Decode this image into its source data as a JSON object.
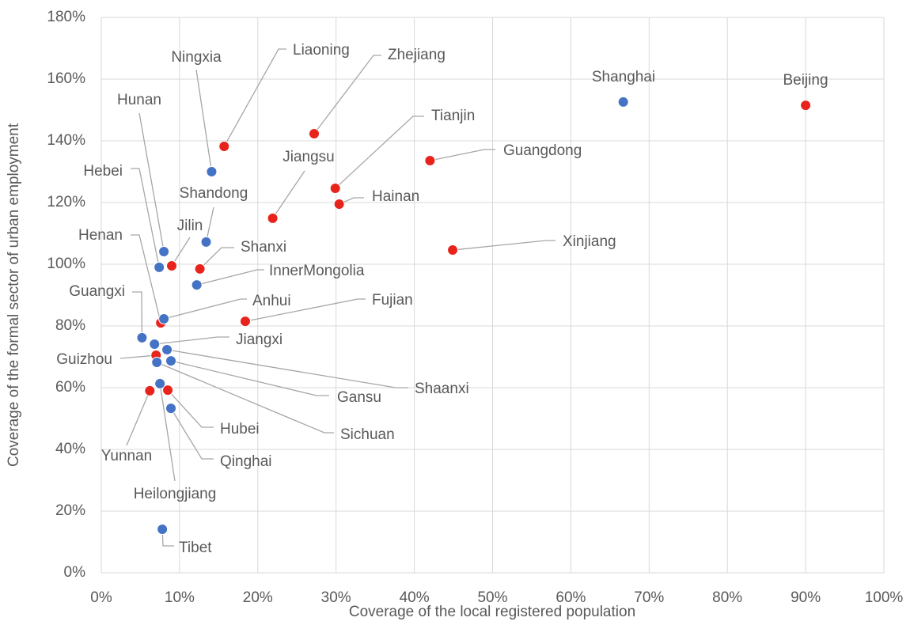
{
  "chart_data": {
    "type": "scatter",
    "x_label": "Coverage of the local registered population",
    "y_label": "Coverage of the formal sector of urban employment",
    "xlim": [
      0,
      100
    ],
    "xticks": [
      {
        "value": 0,
        "label": "0%"
      },
      {
        "value": 10,
        "label": "10%"
      },
      {
        "value": 20,
        "label": "20%"
      },
      {
        "value": 30,
        "label": "30%"
      },
      {
        "value": 40,
        "label": "40%"
      },
      {
        "value": 50,
        "label": "50%"
      },
      {
        "value": 60,
        "label": "60%"
      },
      {
        "value": 70,
        "label": "70%"
      },
      {
        "value": 80,
        "label": "80%"
      },
      {
        "value": 90,
        "label": "90%"
      },
      {
        "value": 100,
        "label": "100%"
      }
    ],
    "ylim": [
      0,
      180
    ],
    "yticks": [
      {
        "value": 0,
        "label": "0%"
      },
      {
        "value": 20,
        "label": "20%"
      },
      {
        "value": 40,
        "label": "40%"
      },
      {
        "value": 60,
        "label": "60%"
      },
      {
        "value": 80,
        "label": "80%"
      },
      {
        "value": 100,
        "label": "100%"
      },
      {
        "value": 120,
        "label": "120%"
      },
      {
        "value": 140,
        "label": "140%"
      },
      {
        "value": 160,
        "label": "160%"
      },
      {
        "value": 180,
        "label": "180%"
      }
    ],
    "grid": true,
    "points": [
      {
        "label": "Shanghai",
        "x": 66.7,
        "y": 152.6,
        "color": "#4472c4"
      },
      {
        "label": "Beijing",
        "x": 90.0,
        "y": 151.5,
        "color": "#e8231b"
      },
      {
        "label": "Liaoning",
        "x": 15.7,
        "y": 138.2,
        "color": "#e8231b"
      },
      {
        "label": "Zhejiang",
        "x": 27.2,
        "y": 142.3,
        "color": "#e8231b"
      },
      {
        "label": "Ningxia",
        "x": 14.1,
        "y": 130.0,
        "color": "#4472c4"
      },
      {
        "label": "Hunan",
        "x": 8.0,
        "y": 104.1,
        "color": "#4472c4"
      },
      {
        "label": "Hebei",
        "x": 7.4,
        "y": 99.0,
        "color": "#4472c4"
      },
      {
        "label": "Jiangsu",
        "x": 21.9,
        "y": 114.9,
        "color": "#e8231b"
      },
      {
        "label": "Tianjin",
        "x": 29.9,
        "y": 124.6,
        "color": "#e8231b"
      },
      {
        "label": "Guangdong",
        "x": 42.0,
        "y": 133.6,
        "color": "#e8231b"
      },
      {
        "label": "Hainan",
        "x": 30.4,
        "y": 119.5,
        "color": "#e8231b"
      },
      {
        "label": "Shandong",
        "x": 13.4,
        "y": 107.2,
        "color": "#4472c4"
      },
      {
        "label": "Jilin",
        "x": 9.0,
        "y": 99.5,
        "color": "#e8231b"
      },
      {
        "label": "Henan",
        "x": 7.6,
        "y": 81.0,
        "color": "#e8231b"
      },
      {
        "label": "Shanxi",
        "x": 12.6,
        "y": 98.5,
        "color": "#e8231b"
      },
      {
        "label": "Xinjiang",
        "x": 44.9,
        "y": 104.6,
        "color": "#e8231b"
      },
      {
        "label": "InnerMongolia",
        "x": 12.2,
        "y": 93.3,
        "color": "#4472c4"
      },
      {
        "label": "Anhui",
        "x": 8.0,
        "y": 82.3,
        "color": "#4472c4"
      },
      {
        "label": "Fujian",
        "x": 18.4,
        "y": 81.5,
        "color": "#e8231b"
      },
      {
        "label": "Guangxi",
        "x": 5.2,
        "y": 76.2,
        "color": "#4472c4"
      },
      {
        "label": "Jiangxi",
        "x": 6.8,
        "y": 74.1,
        "color": "#4472c4"
      },
      {
        "label": "Guizhou",
        "x": 7.0,
        "y": 70.5,
        "color": "#e8231b"
      },
      {
        "label": "Shaanxi",
        "x": 8.4,
        "y": 72.3,
        "color": "#4472c4"
      },
      {
        "label": "Gansu",
        "x": 8.9,
        "y": 68.7,
        "color": "#4472c4"
      },
      {
        "label": "Sichuan",
        "x": 7.1,
        "y": 68.2,
        "color": "#4472c4"
      },
      {
        "label": "Hubei",
        "x": 8.5,
        "y": 59.2,
        "color": "#e8231b"
      },
      {
        "label": "Qinghai",
        "x": 8.9,
        "y": 53.3,
        "color": "#4472c4"
      },
      {
        "label": "Yunnan",
        "x": 6.2,
        "y": 59.0,
        "color": "#e8231b"
      },
      {
        "label": "Heilongjiang",
        "x": 7.5,
        "y": 61.3,
        "color": "#4472c4"
      },
      {
        "label": "Tibet",
        "x": 7.8,
        "y": 14.1,
        "color": "#4472c4"
      }
    ]
  }
}
